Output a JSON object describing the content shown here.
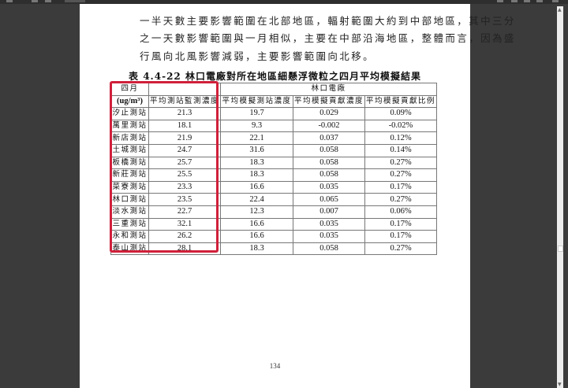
{
  "paragraph_lines": [
    "一半天數主要影響範圍在北部地區，輻射範圍大約到中部地區，其中三分",
    "之一天數影響範圍與一月相似，主要在中部沿海地區，整體而言，因為盛",
    "行風向北風影響減弱，主要影響範圍向北移。"
  ],
  "table": {
    "caption": "表 4.4-22  林口電廠對所在地區細懸浮微粒之四月平均模擬結果",
    "header_month": "四月",
    "header_unit": "(ug/m³)",
    "header_group": "林口電廠",
    "columns": [
      "平均測站監測濃度",
      "平均模擬測站濃度",
      "平均模擬貢獻濃度",
      "平均模擬貢獻比例"
    ],
    "rows": [
      [
        "汐止測站",
        "21.3",
        "19.7",
        "0.029",
        "0.09%"
      ],
      [
        "萬里測站",
        "18.1",
        "9.3",
        "-0.002",
        "-0.02%"
      ],
      [
        "新店測站",
        "21.9",
        "22.1",
        "0.037",
        "0.12%"
      ],
      [
        "土城測站",
        "24.7",
        "31.6",
        "0.058",
        "0.14%"
      ],
      [
        "板橋測站",
        "25.7",
        "18.3",
        "0.058",
        "0.27%"
      ],
      [
        "新莊測站",
        "25.5",
        "18.3",
        "0.058",
        "0.27%"
      ],
      [
        "菜寮測站",
        "23.3",
        "16.6",
        "0.035",
        "0.17%"
      ],
      [
        "林口測站",
        "23.5",
        "22.4",
        "0.065",
        "0.27%"
      ],
      [
        "淡水測站",
        "22.7",
        "12.3",
        "0.007",
        "0.06%"
      ],
      [
        "三重測站",
        "32.1",
        "16.6",
        "0.035",
        "0.17%"
      ],
      [
        "永和測站",
        "26.2",
        "16.6",
        "0.035",
        "0.17%"
      ],
      [
        "泰山測站",
        "28.1",
        "18.3",
        "0.058",
        "0.27%"
      ]
    ]
  },
  "page_number": "134",
  "colors": {
    "highlight_box": "#d0203a",
    "background": "#3b3b3b"
  }
}
